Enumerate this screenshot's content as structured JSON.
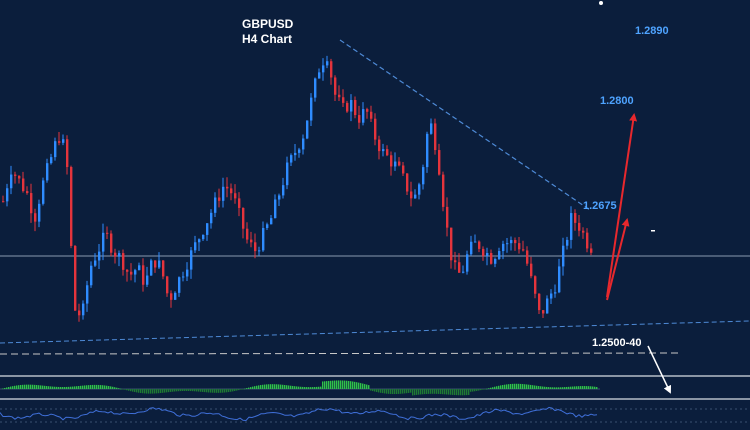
{
  "chart_data": {
    "type": "candlestick",
    "title": "GBPUSD",
    "subtitle": "H4 Chart",
    "ylim": [
      1.247,
      1.2905
    ],
    "annotations": [
      {
        "text": "1.2890"
      },
      {
        "text": "1.2800"
      },
      {
        "text": "1.2675"
      },
      {
        "text": "1.2500-40"
      }
    ],
    "series": [
      {
        "values": [
          1.268,
          1.272,
          1.2705,
          1.269,
          1.266,
          1.27,
          1.273,
          1.276,
          1.274,
          1.255,
          1.254,
          1.26,
          1.262,
          1.264,
          1.262,
          1.261,
          1.259,
          1.26,
          1.258,
          1.261,
          1.26,
          1.256,
          1.258,
          1.26,
          1.262,
          1.264,
          1.266,
          1.268,
          1.27,
          1.269,
          1.266,
          1.263,
          1.262,
          1.264,
          1.266,
          1.269,
          1.272,
          1.274,
          1.276,
          1.28,
          1.284,
          1.286,
          1.281,
          1.279,
          1.28,
          1.278,
          1.279,
          1.276,
          1.274,
          1.273,
          1.272,
          1.27,
          1.268,
          1.271,
          1.278,
          1.274,
          1.266,
          1.26,
          1.259,
          1.262,
          1.263,
          1.262,
          1.261,
          1.263,
          1.263,
          1.263,
          1.262,
          1.258,
          1.254,
          1.256,
          1.258,
          1.262,
          1.266,
          1.265,
          1.263,
          1.262
        ]
      }
    ]
  }
}
